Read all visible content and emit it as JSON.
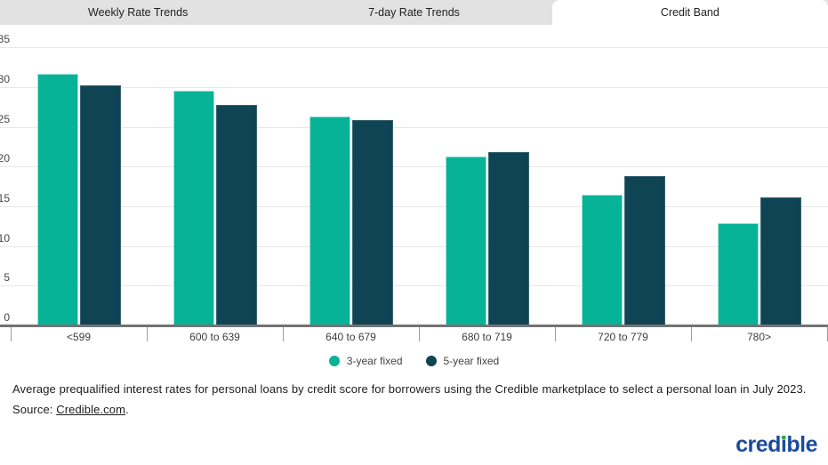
{
  "tabs": [
    {
      "label": "Weekly Rate Trends",
      "active": false
    },
    {
      "label": "7-day Rate Trends",
      "active": false
    },
    {
      "label": "Credit Band",
      "active": true
    }
  ],
  "chart_data": {
    "type": "bar",
    "title": "",
    "xlabel": "",
    "ylabel": "",
    "categories": [
      "<599",
      "600 to 639",
      "640 to 679",
      "680 to 719",
      "720 to 779",
      "780>"
    ],
    "series": [
      {
        "name": "3-year fixed",
        "color": "#07b397",
        "stroke": "#9be0d4",
        "values": [
          31.7,
          29.5,
          26.3,
          21.2,
          16.4,
          12.9
        ]
      },
      {
        "name": "5-year fixed",
        "color": "#0f4454",
        "stroke": "#3b6272",
        "values": [
          30.2,
          27.7,
          25.8,
          21.8,
          18.8,
          16.1
        ]
      }
    ],
    "ylim": [
      0,
      35
    ],
    "y_ticks": [
      0,
      5,
      10,
      15,
      20,
      25,
      30,
      35
    ],
    "grid": true,
    "legend_position": "bottom"
  },
  "caption": {
    "line1": "Average prequalified interest rates for personal loans by credit score for borrowers using the Credible marketplace to select a personal loan in July 2023.",
    "source_prefix": "Source: ",
    "source_link": "Credible.com",
    "source_suffix": "."
  },
  "logo": {
    "text": "credible",
    "prefix": "cred",
    "i_glyph": "ı",
    "suffix": "ble"
  },
  "colors": {
    "bar_3yr": "#07b397",
    "bar_5yr": "#0f4454",
    "tab_inactive_bg": "#e2e2e2",
    "tab_active_bg": "#ffffff",
    "gridline": "#e8e8e8",
    "axis_line": "#737373",
    "tick": "#9e9e9e",
    "axis_text": "#444444",
    "caption_text": "#1c1c1c",
    "logo_blue": "#1a4b9d",
    "logo_green": "#2aa64d"
  }
}
